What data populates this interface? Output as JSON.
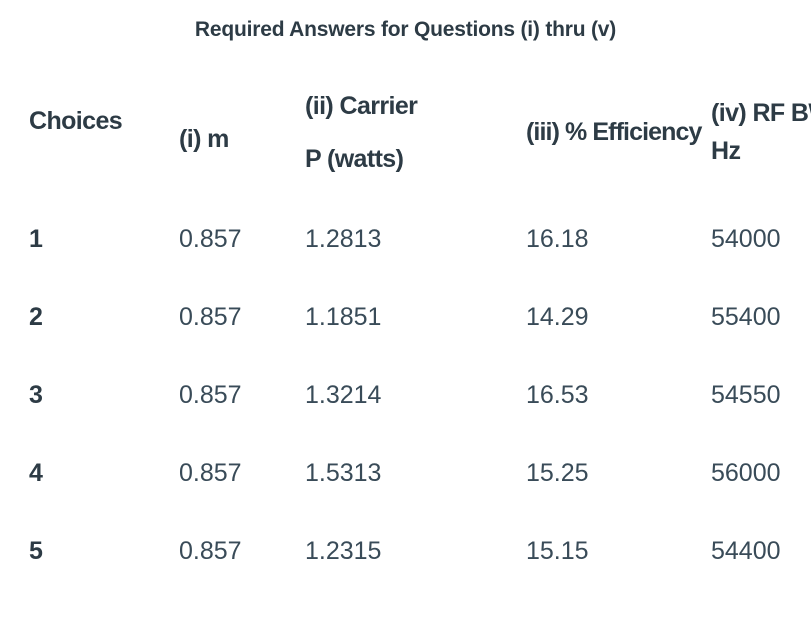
{
  "page": {
    "title": "Required Answers for Questions (i) thru (v)"
  },
  "table": {
    "columns": [
      {
        "label": "Choices"
      },
      {
        "label": "(i) m"
      },
      {
        "label_line1": "(ii) Carrier",
        "label_line2": "P (watts)"
      },
      {
        "label": "(iii) % Efficiency"
      },
      {
        "label": "(iv) RF BW Hz"
      }
    ],
    "rows": [
      [
        "1",
        "0.857",
        "1.2813",
        "16.18",
        "54000"
      ],
      [
        "2",
        "0.857",
        "1.1851",
        "14.29",
        "55400"
      ],
      [
        "3",
        "0.857",
        "1.3214",
        "16.53",
        "54550"
      ],
      [
        "4",
        "0.857",
        "1.5313",
        "15.25",
        "56000"
      ],
      [
        "5",
        "0.857",
        "1.2315",
        "15.15",
        "54400"
      ]
    ]
  },
  "colors": {
    "heading_text": "#2d3b45",
    "body_text": "#394b58",
    "background": "#ffffff"
  }
}
